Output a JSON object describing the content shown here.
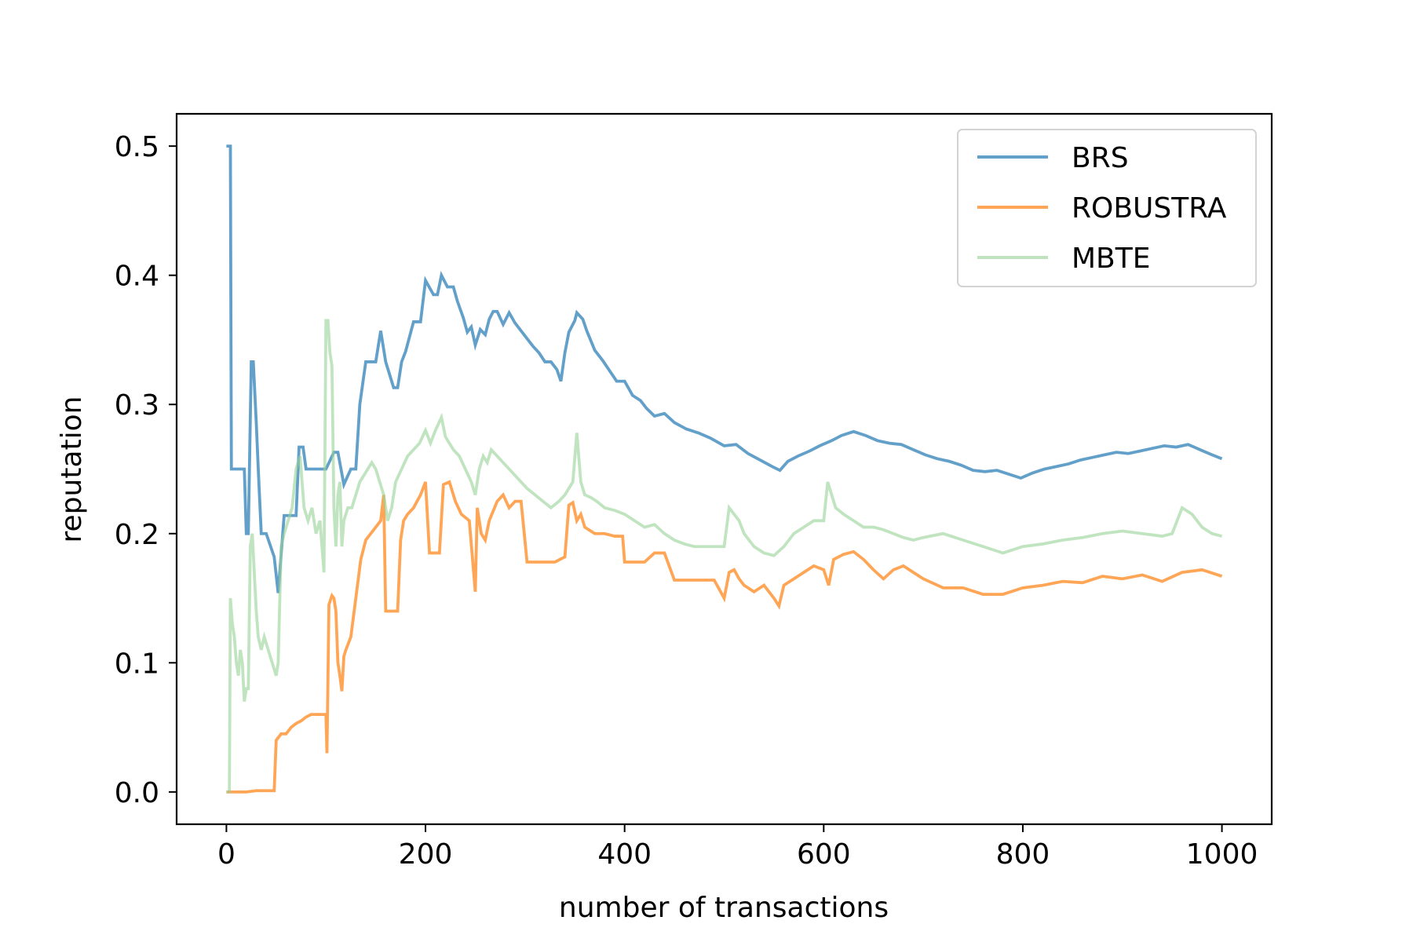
{
  "chart_data": {
    "type": "line",
    "title": "",
    "xlabel": "number of transactions",
    "ylabel": "reputation",
    "xlim": [
      -50,
      1050
    ],
    "ylim": [
      -0.025,
      0.525
    ],
    "xticks": [
      0,
      200,
      400,
      600,
      800,
      1000
    ],
    "xtick_labels": [
      "0",
      "200",
      "400",
      "600",
      "800",
      "1000"
    ],
    "yticks": [
      0.0,
      0.1,
      0.2,
      0.3,
      0.4,
      0.5
    ],
    "ytick_labels": [
      "0.0",
      "0.1",
      "0.2",
      "0.3",
      "0.4",
      "0.5"
    ],
    "grid": false,
    "legend_position": "top-right",
    "series": [
      {
        "name": "BRS",
        "color": "#1f77b4",
        "opacity": 0.7,
        "x": [
          0,
          4,
          5,
          8,
          18,
          20,
          22,
          25,
          27,
          30,
          32,
          35,
          40,
          48,
          52,
          58,
          62,
          70,
          73,
          77,
          80,
          90,
          100,
          108,
          112,
          118,
          125,
          130,
          134,
          140,
          145,
          150,
          155,
          160,
          168,
          172,
          176,
          180,
          188,
          195,
          200,
          208,
          212,
          216,
          222,
          228,
          232,
          238,
          242,
          246,
          250,
          255,
          260,
          264,
          268,
          272,
          278,
          284,
          290,
          296,
          302,
          308,
          314,
          320,
          326,
          332,
          336,
          340,
          344,
          350,
          352,
          358,
          362,
          370,
          378,
          385,
          392,
          400,
          408,
          416,
          422,
          430,
          440,
          450,
          462,
          474,
          486,
          500,
          512,
          524,
          536,
          548,
          556,
          564,
          574,
          586,
          596,
          608,
          618,
          630,
          642,
          654,
          666,
          678,
          690,
          702,
          714,
          726,
          738,
          750,
          762,
          774,
          786,
          798,
          810,
          822,
          834,
          846,
          858,
          870,
          882,
          894,
          906,
          918,
          930,
          942,
          954,
          966,
          978,
          990,
          1000
        ],
        "y": [
          0.5,
          0.5,
          0.25,
          0.25,
          0.25,
          0.2,
          0.2,
          0.333,
          0.333,
          0.286,
          0.25,
          0.2,
          0.2,
          0.182,
          0.154,
          0.214,
          0.214,
          0.214,
          0.267,
          0.267,
          0.25,
          0.25,
          0.25,
          0.263,
          0.263,
          0.238,
          0.25,
          0.25,
          0.3,
          0.333,
          0.333,
          0.333,
          0.357,
          0.333,
          0.313,
          0.313,
          0.333,
          0.341,
          0.364,
          0.364,
          0.396,
          0.385,
          0.385,
          0.4,
          0.391,
          0.391,
          0.38,
          0.367,
          0.356,
          0.36,
          0.346,
          0.358,
          0.354,
          0.366,
          0.372,
          0.372,
          0.362,
          0.371,
          0.363,
          0.357,
          0.351,
          0.345,
          0.34,
          0.333,
          0.333,
          0.327,
          0.318,
          0.34,
          0.356,
          0.365,
          0.371,
          0.366,
          0.357,
          0.342,
          0.334,
          0.326,
          0.318,
          0.318,
          0.307,
          0.303,
          0.297,
          0.291,
          0.293,
          0.286,
          0.281,
          0.278,
          0.274,
          0.268,
          0.269,
          0.262,
          0.257,
          0.252,
          0.249,
          0.256,
          0.26,
          0.264,
          0.268,
          0.272,
          0.276,
          0.279,
          0.276,
          0.272,
          0.27,
          0.269,
          0.265,
          0.261,
          0.258,
          0.256,
          0.253,
          0.249,
          0.248,
          0.249,
          0.246,
          0.243,
          0.247,
          0.25,
          0.252,
          0.254,
          0.257,
          0.259,
          0.261,
          0.263,
          0.262,
          0.264,
          0.266,
          0.268,
          0.267,
          0.269,
          0.265,
          0.261,
          0.258
        ]
      },
      {
        "name": "ROBUSTRA",
        "color": "#ff7f0e",
        "opacity": 0.7,
        "x": [
          0,
          10,
          20,
          30,
          40,
          48,
          50,
          55,
          60,
          65,
          70,
          75,
          80,
          85,
          90,
          95,
          100,
          101,
          103,
          106,
          108,
          110,
          112,
          114,
          116,
          118,
          120,
          125,
          130,
          135,
          140,
          145,
          150,
          155,
          158,
          160,
          168,
          172,
          175,
          178,
          182,
          188,
          195,
          200,
          204,
          208,
          214,
          218,
          224,
          230,
          236,
          244,
          250,
          252,
          256,
          260,
          264,
          272,
          278,
          284,
          290,
          296,
          302,
          310,
          320,
          330,
          340,
          344,
          348,
          352,
          356,
          360,
          370,
          380,
          390,
          398,
          400,
          410,
          420,
          430,
          440,
          450,
          460,
          470,
          480,
          490,
          500,
          505,
          510,
          515,
          520,
          530,
          540,
          550,
          555,
          560,
          570,
          580,
          590,
          600,
          605,
          610,
          620,
          630,
          640,
          650,
          660,
          670,
          680,
          690,
          700,
          720,
          740,
          760,
          780,
          800,
          820,
          840,
          860,
          880,
          900,
          920,
          940,
          960,
          980,
          1000
        ],
        "y": [
          0.0,
          0.0,
          0.0,
          0.001,
          0.001,
          0.001,
          0.04,
          0.045,
          0.045,
          0.05,
          0.053,
          0.055,
          0.058,
          0.06,
          0.06,
          0.06,
          0.06,
          0.03,
          0.145,
          0.152,
          0.15,
          0.14,
          0.1,
          0.09,
          0.078,
          0.105,
          0.11,
          0.12,
          0.15,
          0.18,
          0.195,
          0.2,
          0.205,
          0.21,
          0.23,
          0.14,
          0.14,
          0.14,
          0.195,
          0.21,
          0.215,
          0.22,
          0.23,
          0.24,
          0.185,
          0.185,
          0.185,
          0.238,
          0.24,
          0.225,
          0.215,
          0.21,
          0.155,
          0.22,
          0.2,
          0.195,
          0.21,
          0.225,
          0.23,
          0.22,
          0.225,
          0.225,
          0.178,
          0.178,
          0.178,
          0.178,
          0.182,
          0.222,
          0.224,
          0.21,
          0.215,
          0.205,
          0.2,
          0.2,
          0.198,
          0.198,
          0.178,
          0.178,
          0.178,
          0.185,
          0.185,
          0.164,
          0.164,
          0.164,
          0.164,
          0.164,
          0.15,
          0.17,
          0.172,
          0.165,
          0.16,
          0.155,
          0.16,
          0.15,
          0.144,
          0.16,
          0.165,
          0.17,
          0.175,
          0.172,
          0.16,
          0.18,
          0.184,
          0.186,
          0.18,
          0.172,
          0.165,
          0.172,
          0.175,
          0.17,
          0.165,
          0.158,
          0.158,
          0.153,
          0.153,
          0.158,
          0.16,
          0.163,
          0.162,
          0.167,
          0.165,
          0.168,
          0.163,
          0.17,
          0.172,
          0.167
        ]
      },
      {
        "name": "MBTE",
        "color": "#98d296",
        "opacity": 0.6,
        "x": [
          0,
          3,
          4,
          6,
          8,
          10,
          12,
          14,
          16,
          18,
          20,
          22,
          24,
          26,
          28,
          30,
          32,
          35,
          38,
          42,
          46,
          50,
          52,
          55,
          58,
          62,
          66,
          70,
          74,
          78,
          82,
          86,
          90,
          94,
          98,
          100,
          102,
          104,
          106,
          108,
          110,
          112,
          114,
          116,
          118,
          122,
          126,
          130,
          134,
          138,
          142,
          146,
          150,
          154,
          158,
          162,
          166,
          170,
          176,
          182,
          188,
          194,
          200,
          205,
          210,
          216,
          220,
          224,
          228,
          234,
          240,
          246,
          250,
          254,
          258,
          262,
          266,
          272,
          278,
          284,
          290,
          296,
          302,
          310,
          318,
          326,
          334,
          340,
          344,
          348,
          352,
          356,
          360,
          366,
          372,
          380,
          390,
          400,
          410,
          420,
          430,
          440,
          450,
          460,
          470,
          480,
          490,
          500,
          505,
          510,
          515,
          520,
          525,
          530,
          540,
          550,
          560,
          570,
          580,
          590,
          600,
          604,
          608,
          612,
          620,
          630,
          640,
          650,
          660,
          670,
          680,
          690,
          700,
          720,
          740,
          760,
          780,
          800,
          820,
          840,
          860,
          880,
          900,
          920,
          940,
          950,
          955,
          960,
          970,
          980,
          990,
          1000
        ],
        "y": [
          0.0,
          0.0,
          0.15,
          0.13,
          0.12,
          0.1,
          0.09,
          0.11,
          0.1,
          0.07,
          0.08,
          0.08,
          0.19,
          0.2,
          0.17,
          0.14,
          0.12,
          0.11,
          0.12,
          0.11,
          0.1,
          0.09,
          0.1,
          0.19,
          0.2,
          0.21,
          0.22,
          0.25,
          0.26,
          0.22,
          0.21,
          0.22,
          0.2,
          0.21,
          0.17,
          0.365,
          0.365,
          0.34,
          0.33,
          0.22,
          0.19,
          0.23,
          0.24,
          0.19,
          0.21,
          0.22,
          0.22,
          0.23,
          0.24,
          0.245,
          0.25,
          0.255,
          0.25,
          0.24,
          0.23,
          0.21,
          0.22,
          0.24,
          0.25,
          0.26,
          0.265,
          0.27,
          0.28,
          0.27,
          0.28,
          0.29,
          0.275,
          0.27,
          0.265,
          0.26,
          0.25,
          0.24,
          0.23,
          0.25,
          0.26,
          0.255,
          0.265,
          0.26,
          0.255,
          0.25,
          0.245,
          0.24,
          0.235,
          0.23,
          0.225,
          0.22,
          0.225,
          0.23,
          0.235,
          0.24,
          0.278,
          0.24,
          0.23,
          0.228,
          0.225,
          0.22,
          0.218,
          0.215,
          0.21,
          0.205,
          0.207,
          0.2,
          0.195,
          0.192,
          0.19,
          0.19,
          0.19,
          0.19,
          0.22,
          0.215,
          0.21,
          0.2,
          0.195,
          0.19,
          0.185,
          0.183,
          0.19,
          0.2,
          0.205,
          0.21,
          0.21,
          0.24,
          0.23,
          0.22,
          0.215,
          0.21,
          0.205,
          0.205,
          0.203,
          0.2,
          0.197,
          0.195,
          0.197,
          0.2,
          0.195,
          0.19,
          0.185,
          0.19,
          0.192,
          0.195,
          0.197,
          0.2,
          0.202,
          0.2,
          0.198,
          0.2,
          0.21,
          0.22,
          0.215,
          0.205,
          0.2,
          0.198
        ]
      }
    ]
  }
}
